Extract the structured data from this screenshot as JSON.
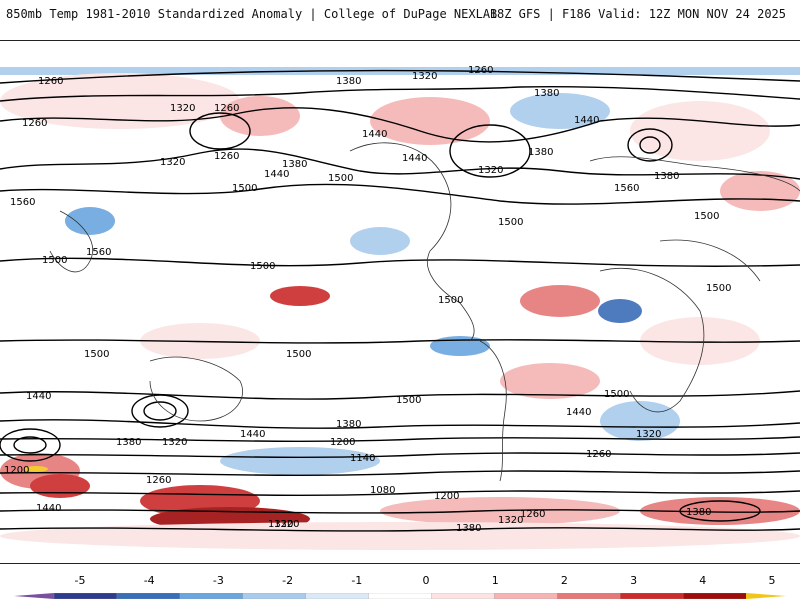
{
  "header": {
    "title_left": "850mb Temp 1981-2010 Standardized Anomaly | College of DuPage NEXLAB",
    "title_right": "18Z GFS | F186 Valid: 12Z MON NOV 24 2025"
  },
  "contour_labels": [
    "1260",
    "1380",
    "1320",
    "1260",
    "1380",
    "1320",
    "1260",
    "1440",
    "1320",
    "1260",
    "1380",
    "1440",
    "1500",
    "1560",
    "1380",
    "1440",
    "1500",
    "1500",
    "1440",
    "1380",
    "1320",
    "1260",
    "1560",
    "1500",
    "1500",
    "1500",
    "1500",
    "1500",
    "1500",
    "1500",
    "1500",
    "1440",
    "1380",
    "1320",
    "1200",
    "1140",
    "1080",
    "1200",
    "1260",
    "1320",
    "1380",
    "1200",
    "1260",
    "1320",
    "1380",
    "1440",
    "1320",
    "1260",
    "1440",
    "1380",
    "1320",
    "1500",
    "1560",
    "1440"
  ],
  "colorbar": {
    "ticks": [
      "-5",
      "-4",
      "-3",
      "-2",
      "-1",
      "0",
      "1",
      "2",
      "3",
      "4",
      "5"
    ],
    "colors": [
      "#7b4fa0",
      "#2f3b8f",
      "#3a6db8",
      "#6aa6de",
      "#a8cbed",
      "#dbe9f7",
      "#ffffff",
      "#fbe3e3",
      "#f4b4b4",
      "#e57878",
      "#cc2b2b",
      "#9e0c0c",
      "#f2c51a"
    ]
  },
  "icons": [
    "colorbar-left-arrow",
    "colorbar-right-arrow"
  ]
}
